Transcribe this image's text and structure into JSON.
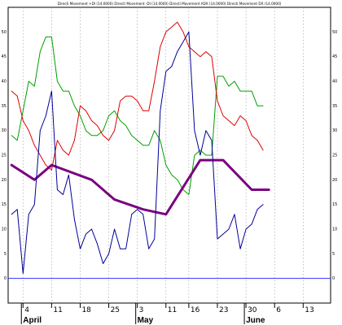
{
  "chart_data": {
    "type": "line",
    "title": "Directi Movement +DI (14.0000) Directi Movement -DI (14.0000) Directi Movement ADX (14.0000) Directi Movement DX (14.0000)",
    "xlabel": "",
    "ylabel": "",
    "ylim": [
      -5,
      55
    ],
    "y_ticks": [
      0,
      5,
      10,
      15,
      20,
      25,
      30,
      35,
      40,
      45,
      50
    ],
    "x_ticks": [
      {
        "label": "4",
        "at": 2
      },
      {
        "label": "11",
        "at": 7
      },
      {
        "label": "18",
        "at": 12
      },
      {
        "label": "25",
        "at": 17
      },
      {
        "label": "3",
        "at": 22
      },
      {
        "label": "11",
        "at": 27
      },
      {
        "label": "16",
        "at": 31
      },
      {
        "label": "23",
        "at": 36
      },
      {
        "label": "30",
        "at": 41
      },
      {
        "label": "6",
        "at": 46
      },
      {
        "label": "13",
        "at": 51
      }
    ],
    "months": [
      {
        "label": "April",
        "at": 2
      },
      {
        "label": "May",
        "at": 22
      },
      {
        "label": "June",
        "at": 41
      }
    ],
    "x_range": [
      -0.6,
      55.8
    ],
    "grid": "vertical-dotted",
    "baseline": 0,
    "series": [
      {
        "name": "Directi Movement +DI (14.0000)",
        "color": "#00a000",
        "width": 1,
        "x": [
          0,
          1,
          2,
          3,
          4,
          5,
          6,
          7,
          8,
          9,
          10,
          11,
          12,
          13,
          14,
          15,
          16,
          17,
          18,
          19,
          20,
          21,
          22,
          23,
          24,
          25,
          26,
          27,
          28,
          29,
          30,
          31,
          32,
          33,
          34,
          35,
          36,
          37,
          38,
          39,
          40,
          41,
          42,
          43,
          44
        ],
        "values": [
          29,
          28,
          34,
          40,
          39,
          46,
          49,
          49,
          40,
          38,
          38,
          35,
          33,
          30,
          29,
          29,
          30,
          33,
          34,
          32,
          31,
          29,
          28,
          27,
          27,
          30,
          28,
          23,
          21,
          20,
          18,
          17,
          25,
          26,
          25,
          25,
          41,
          41,
          39,
          40,
          38,
          38,
          38,
          35,
          35
        ]
      },
      {
        "name": "Directi Movement -DI (14.0000)",
        "color": "#e00000",
        "width": 1,
        "x": [
          0,
          1,
          2,
          3,
          4,
          5,
          6,
          7,
          8,
          9,
          10,
          11,
          12,
          13,
          14,
          15,
          16,
          17,
          18,
          19,
          20,
          21,
          22,
          23,
          24,
          25,
          26,
          27,
          28,
          29,
          30,
          31,
          32,
          33,
          34,
          35,
          36,
          37,
          38,
          39,
          40,
          41,
          42,
          43,
          44
        ],
        "values": [
          38,
          37,
          32,
          30,
          27,
          25,
          23,
          22,
          28,
          26,
          25,
          28,
          35,
          34,
          32,
          31,
          29,
          28,
          30,
          36,
          37,
          37,
          36,
          34,
          34,
          40,
          47,
          50,
          51,
          52,
          50,
          47,
          46,
          45,
          46,
          45,
          36,
          33,
          32,
          31,
          33,
          32,
          29,
          28,
          26
        ]
      },
      {
        "name": "Directi Movement ADX (14.0000)",
        "color": "#7a0080",
        "width": 3,
        "x": [
          0,
          4,
          7,
          14,
          18,
          23,
          27,
          33,
          37,
          42,
          45
        ],
        "values": [
          23,
          20,
          23,
          20,
          16,
          14,
          13,
          24,
          24,
          18,
          18
        ]
      },
      {
        "name": "Directi Movement DX (14.0000)",
        "color": "#000099",
        "width": 1,
        "x": [
          0,
          1,
          2,
          3,
          4,
          5,
          6,
          7,
          8,
          9,
          10,
          11,
          12,
          13,
          14,
          15,
          16,
          17,
          18,
          19,
          20,
          21,
          22,
          23,
          24,
          25,
          26,
          27,
          28,
          29,
          30,
          31,
          32,
          33,
          34,
          35,
          36,
          37,
          38,
          39,
          40,
          41,
          42,
          43,
          44
        ],
        "values": [
          13,
          14,
          1,
          13,
          15,
          30,
          33,
          38,
          18,
          17,
          21,
          12,
          6,
          9,
          10,
          7,
          3,
          5,
          10,
          6,
          6,
          13,
          14,
          13,
          6,
          8,
          34,
          42,
          43,
          46,
          48,
          50,
          30,
          25,
          30,
          28,
          8,
          9,
          10,
          13,
          6,
          10,
          11,
          14,
          15
        ]
      }
    ]
  }
}
